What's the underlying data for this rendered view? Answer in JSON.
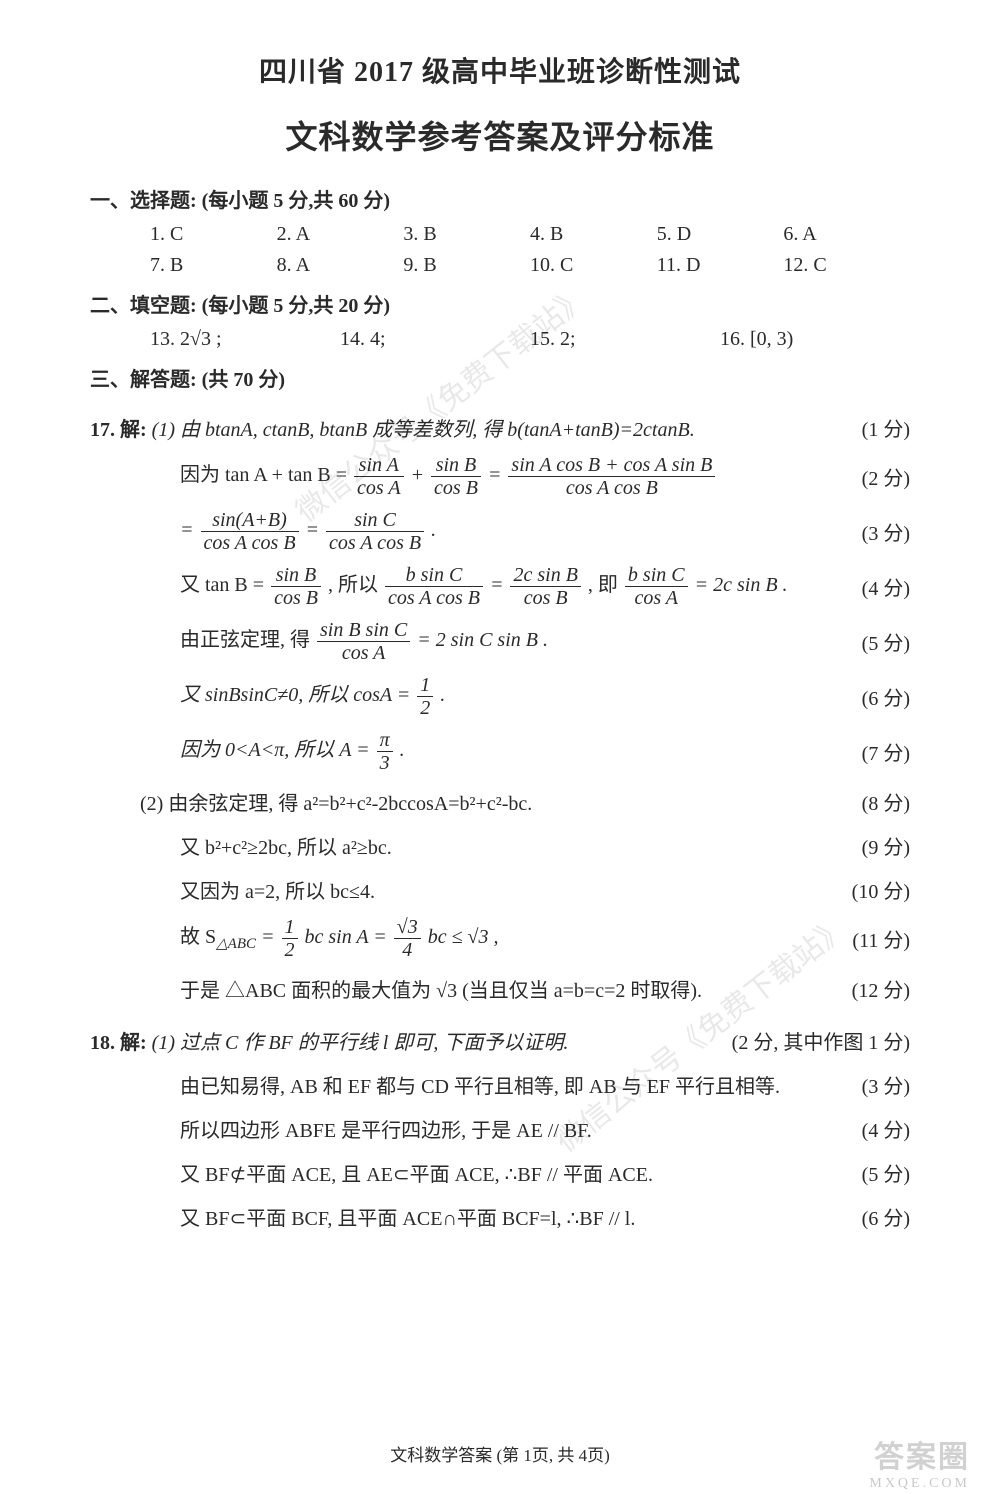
{
  "title1": "四川省 2017 级高中毕业班诊断性测试",
  "title2": "文科数学参考答案及评分标准",
  "section1": "一、选择题: (每小题 5 分,共 60 分)",
  "mcq": [
    [
      "1. C",
      "2. A",
      "3. B",
      "4. B",
      "5. D",
      "6. A"
    ],
    [
      "7. B",
      "8. A",
      "9. B",
      "10. C",
      "11. D",
      "12. C"
    ]
  ],
  "section2": "二、填空题: (每小题 5 分,共 20 分)",
  "fill": [
    "13.  2√3 ;",
    "14.  4;",
    "15.  2;",
    "16.  [0, 3)"
  ],
  "section3": "三、解答题: (共 70 分)",
  "q17_head": "17.  解:",
  "q17_1_a": "(1) 由 btanA, ctanB, btanB 成等差数列, 得 b(tanA+tanB)=2ctanB.",
  "q17_1_a_pts": "(1 分)",
  "q17_1_b_pre": "因为 tan A + tan B =",
  "q17_1_b_pts": "(2 分)",
  "q17_1_c_pts": "(3 分)",
  "q17_1_d_pre": "又 tan B =",
  "q17_1_d_mid1": ", 所以",
  "q17_1_d_mid2": ", 即",
  "q17_1_d_tail": "= 2c sin B .",
  "q17_1_d_pts": "(4 分)",
  "q17_1_e_pre": "由正弦定理, 得",
  "q17_1_e_tail": "= 2 sin C sin B .",
  "q17_1_e_pts": "(5 分)",
  "q17_1_f_pre": "又 sinBsinC≠0, 所以 cosA =",
  "q17_1_f_pts": "(6 分)",
  "q17_1_g_pre": "因为 0<A<π, 所以 A =",
  "q17_1_g_pts": "(7 分)",
  "q17_2_a": "(2) 由余弦定理, 得 a²=b²+c²-2bccosA=b²+c²-bc.",
  "q17_2_a_pts": "(8 分)",
  "q17_2_b": "又 b²+c²≥2bc, 所以 a²≥bc.",
  "q17_2_b_pts": "(9 分)",
  "q17_2_c": "又因为 a=2, 所以 bc≤4.",
  "q17_2_c_pts": "(10 分)",
  "q17_2_d_pre": "故 S",
  "q17_2_d_sub": "△ABC",
  "q17_2_d_mid": "bc sin A =",
  "q17_2_d_tail": "bc ≤ √3 ,",
  "q17_2_d_pts": "(11 分)",
  "q17_2_e": "于是 △ABC 面积的最大值为 √3 (当且仅当 a=b=c=2 时取得).",
  "q17_2_e_pts": "(12 分)",
  "q18_head": "18.  解:",
  "q18_1_a": "(1) 过点 C 作 BF 的平行线 l 即可, 下面予以证明.",
  "q18_1_a_pts": "(2 分, 其中作图 1 分)",
  "q18_1_b": "由已知易得, AB 和 EF 都与 CD 平行且相等, 即 AB 与 EF 平行且相等.",
  "q18_1_b_pts": "(3 分)",
  "q18_1_c": "所以四边形 ABFE 是平行四边形, 于是 AE // BF.",
  "q18_1_c_pts": "(4 分)",
  "q18_1_d": "又 BF⊄平面 ACE, 且 AE⊂平面 ACE, ∴BF // 平面 ACE.",
  "q18_1_d_pts": "(5 分)",
  "q18_1_e": "又 BF⊂平面 BCF, 且平面 ACE∩平面 BCF=l, ∴BF // l.",
  "q18_1_e_pts": "(6 分)",
  "footer": "文科数学答案 (第 1页, 共 4页)",
  "watermark": "微信公众号《免费下载站》",
  "corner": "答案圈",
  "corner_sub": "MXQE.COM",
  "fracs": {
    "sinA": "sin A",
    "cosA": "cos A",
    "sinB": "sin B",
    "cosB": "cos B",
    "sinC": "sin C",
    "sinAB": "sin(A+B)",
    "cosAcosB": "cos A cos B",
    "long_num": "sin A cos B + cos A sin B",
    "bsinC": "b sin C",
    "twocsinB": "2c sin B",
    "sinBsinC": "sin B sin C",
    "one": "1",
    "two": "2",
    "three": "3",
    "four": "4",
    "pi": "π",
    "rt3": "√3"
  }
}
